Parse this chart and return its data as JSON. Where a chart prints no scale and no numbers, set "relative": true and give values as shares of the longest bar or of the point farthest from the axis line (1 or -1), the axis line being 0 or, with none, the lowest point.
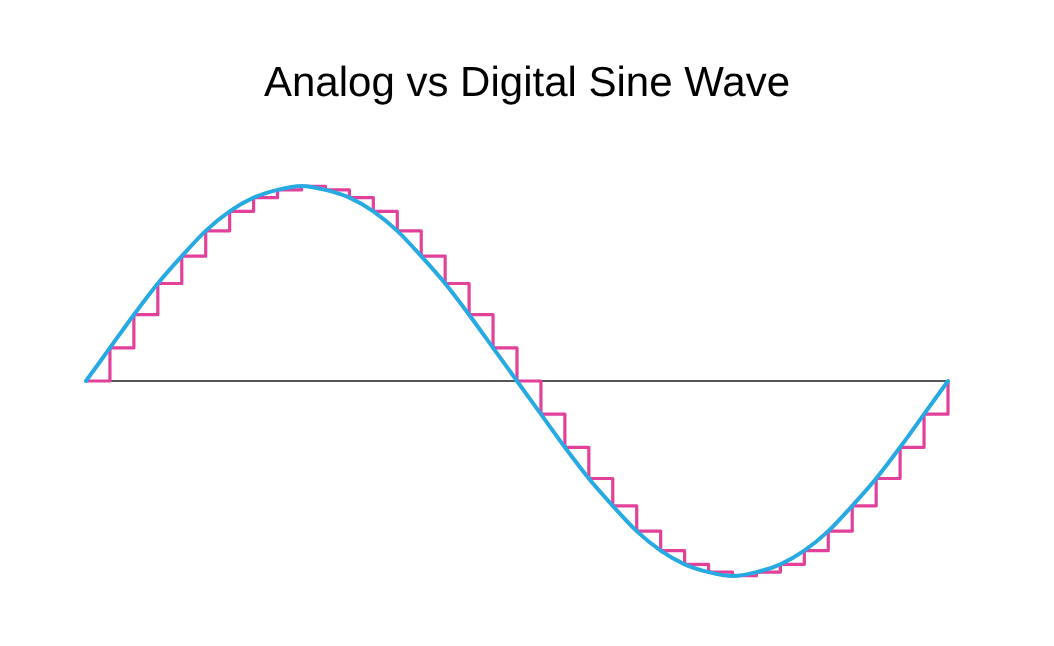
{
  "chart_data": {
    "type": "line",
    "title": "Analog vs Digital Sine Wave",
    "relative": true,
    "grid": false,
    "marker": "none",
    "line_style": "solid",
    "categories": [
      null,
      null,
      null,
      null,
      null,
      null,
      null,
      null,
      null,
      null,
      null,
      null,
      null,
      null,
      null,
      null,
      null,
      null,
      null,
      null,
      null,
      null,
      null,
      null,
      null,
      null,
      null,
      null,
      null,
      null,
      null,
      null,
      null,
      null,
      null,
      null,
      null
    ],
    "series": [
      {
        "type": "step",
        "color": "#e2409b",
        "values": [
          0,
          0.17,
          0.34,
          0.5,
          0.64,
          0.77,
          0.87,
          0.94,
          0.98,
          1,
          0.98,
          0.94,
          0.87,
          0.77,
          0.64,
          0.5,
          0.34,
          0.17,
          0,
          -0.17,
          -0.34,
          -0.5,
          -0.64,
          -0.77,
          -0.87,
          -0.94,
          -0.98,
          -1,
          -0.98,
          -0.94,
          -0.87,
          -0.77,
          -0.64,
          -0.5,
          -0.34,
          -0.17,
          0
        ]
      },
      {
        "color": "#27aae1",
        "values": [
          0,
          0.17,
          0.34,
          0.5,
          0.64,
          0.77,
          0.87,
          0.94,
          0.98,
          1,
          0.98,
          0.94,
          0.87,
          0.77,
          0.64,
          0.5,
          0.34,
          0.17,
          0,
          -0.17,
          -0.34,
          -0.5,
          -0.64,
          -0.77,
          -0.87,
          -0.94,
          -0.98,
          -1,
          -0.98,
          -0.94,
          -0.87,
          -0.77,
          -0.64,
          -0.5,
          -0.34,
          -0.17,
          0
        ]
      }
    ]
  }
}
